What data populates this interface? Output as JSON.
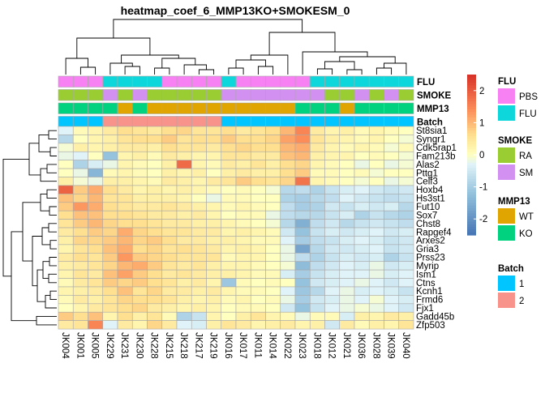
{
  "chart_data": {
    "type": "heatmap",
    "title": "heatmap_coef_6_MMP13KO+SMOKESM_0",
    "columns": [
      "JK004",
      "JK001",
      "JK005",
      "JK229",
      "JK231",
      "JK230",
      "JK228",
      "JK215",
      "JK218",
      "JK217",
      "JK219",
      "JK016",
      "JK017",
      "JK011",
      "JK014",
      "JK022",
      "JK023",
      "JK018",
      "JK012",
      "JK021",
      "JK036",
      "JK028",
      "JK039",
      "JK040"
    ],
    "rows": [
      "St8sia1",
      "Syngr1",
      "Cdk5rap1",
      "Fam213b",
      "Alas2",
      "Pttg1",
      "Celf3",
      "Hoxb4",
      "Hs3st1",
      "Fut10",
      "Sox7",
      "Chst8",
      "Rapgef4",
      "Arxes2",
      "Gria3",
      "Prss23",
      "Myrip",
      "Ism1",
      "Ctns",
      "Kcnh1",
      "Frmd6",
      "Fjx1",
      "Gadd45b",
      "Zfp503"
    ],
    "values": [
      [
        -0.3,
        0.1,
        0.2,
        0.4,
        0.6,
        0.5,
        0.4,
        0.6,
        0.7,
        0.5,
        0.5,
        0.6,
        0.4,
        0.5,
        0.6,
        1.0,
        1.5,
        0.4,
        0.2,
        0.3,
        0.1,
        0.2,
        0.1,
        0.0
      ],
      [
        -0.8,
        0.0,
        0.2,
        0.3,
        0.5,
        0.6,
        0.6,
        0.8,
        0.5,
        0.6,
        0.6,
        0.8,
        0.6,
        0.6,
        0.7,
        1.2,
        1.4,
        0.5,
        0.3,
        0.2,
        0.1,
        0.2,
        0.0,
        -0.1
      ],
      [
        -0.1,
        0.3,
        0.2,
        0.3,
        0.4,
        0.4,
        0.3,
        0.6,
        0.5,
        0.5,
        0.4,
        0.6,
        0.7,
        0.6,
        0.6,
        1.0,
        1.1,
        0.4,
        0.2,
        0.1,
        0.2,
        0.1,
        -0.1,
        0.1
      ],
      [
        -0.2,
        -0.3,
        0.0,
        -1.2,
        0.2,
        0.3,
        0.1,
        0.4,
        0.3,
        0.2,
        0.2,
        0.5,
        0.5,
        0.4,
        0.4,
        0.9,
        1.0,
        0.3,
        0.2,
        0.2,
        0.0,
        0.1,
        0.0,
        -0.1
      ],
      [
        0.0,
        -0.9,
        -0.4,
        -0.2,
        0.2,
        0.1,
        0.0,
        0.3,
        1.8,
        0.2,
        0.1,
        0.4,
        0.3,
        0.5,
        0.3,
        0.6,
        0.7,
        0.2,
        0.1,
        0.0,
        -0.2,
        0.0,
        -0.2,
        -0.1
      ],
      [
        0.0,
        -0.2,
        -1.4,
        0.1,
        0.2,
        0.1,
        0.0,
        0.3,
        0.2,
        0.3,
        0.0,
        0.3,
        0.4,
        0.3,
        0.3,
        0.6,
        0.8,
        0.1,
        0.1,
        0.0,
        0.1,
        -0.1,
        0.0,
        0.0
      ],
      [
        0.3,
        -0.1,
        -0.2,
        0.3,
        0.3,
        0.2,
        0.1,
        0.4,
        0.3,
        0.2,
        0.4,
        0.5,
        0.8,
        0.6,
        0.5,
        0.7,
        1.7,
        0.2,
        0.1,
        0.0,
        -0.1,
        0.0,
        -0.2,
        -0.1
      ],
      [
        1.9,
        0.8,
        1.1,
        0.6,
        0.4,
        0.2,
        0.3,
        0.2,
        0.3,
        0.2,
        0.1,
        0.0,
        0.1,
        0.0,
        -0.1,
        -0.8,
        -0.7,
        -0.9,
        -0.6,
        -0.4,
        -0.3,
        -0.5,
        -0.6,
        -0.5
      ],
      [
        0.9,
        0.7,
        1.0,
        0.5,
        0.5,
        0.3,
        0.3,
        0.3,
        0.2,
        0.0,
        -0.2,
        0.1,
        0.1,
        0.0,
        0.0,
        -0.9,
        -1.0,
        -0.8,
        -0.7,
        -0.3,
        -0.5,
        -0.6,
        -0.7,
        -0.6
      ],
      [
        0.8,
        1.3,
        1.1,
        0.6,
        0.5,
        0.4,
        0.4,
        0.5,
        0.4,
        0.3,
        0.2,
        0.1,
        0.2,
        0.1,
        0.0,
        -0.7,
        -1.0,
        -0.9,
        -0.5,
        -0.6,
        -0.4,
        -0.5,
        -0.4,
        -0.8
      ],
      [
        0.6,
        0.9,
        0.9,
        0.6,
        0.6,
        0.5,
        0.4,
        0.4,
        0.3,
        0.4,
        0.2,
        0.0,
        0.1,
        0.1,
        -0.2,
        -0.7,
        -0.8,
        -0.8,
        -0.6,
        -0.4,
        -0.9,
        -0.6,
        -0.8,
        -0.9
      ],
      [
        0.5,
        0.8,
        1.0,
        0.7,
        0.6,
        0.6,
        0.5,
        0.4,
        0.4,
        0.3,
        0.3,
        0.2,
        0.1,
        0.0,
        -0.1,
        -0.8,
        -1.5,
        -0.7,
        -0.5,
        -0.8,
        -0.6,
        -0.5,
        -0.6,
        -0.7
      ],
      [
        0.4,
        0.6,
        0.8,
        0.7,
        1.1,
        0.7,
        0.6,
        0.5,
        0.5,
        0.4,
        0.4,
        0.2,
        0.3,
        0.2,
        0.1,
        -0.5,
        -1.2,
        -0.6,
        -0.4,
        -0.5,
        -0.4,
        -0.3,
        -0.5,
        -0.4
      ],
      [
        0.3,
        0.7,
        0.7,
        0.8,
        1.0,
        0.7,
        0.8,
        0.6,
        0.4,
        0.4,
        0.3,
        0.3,
        0.2,
        0.1,
        0.1,
        -0.3,
        -1.0,
        -0.7,
        -0.6,
        -0.4,
        -0.3,
        -0.4,
        -0.6,
        -0.5
      ],
      [
        0.2,
        0.5,
        0.6,
        0.9,
        1.1,
        0.6,
        0.7,
        0.5,
        0.6,
        0.5,
        0.4,
        0.2,
        0.3,
        0.2,
        0.0,
        -0.2,
        -1.7,
        -0.8,
        -0.5,
        -0.5,
        -0.4,
        -0.3,
        -0.6,
        -0.5
      ],
      [
        0.4,
        0.6,
        0.5,
        0.8,
        1.3,
        0.8,
        0.7,
        0.6,
        0.5,
        0.5,
        0.5,
        0.1,
        0.2,
        0.2,
        0.0,
        -0.2,
        -0.7,
        -0.9,
        -0.6,
        -0.4,
        -0.5,
        -0.4,
        -0.9,
        -0.6
      ],
      [
        0.3,
        0.4,
        0.5,
        0.7,
        1.0,
        1.1,
        0.8,
        0.5,
        0.4,
        0.5,
        0.3,
        0.2,
        0.2,
        0.1,
        0.0,
        -0.1,
        -1.3,
        -0.7,
        -0.5,
        -0.3,
        -0.4,
        -0.2,
        -0.5,
        -0.4
      ],
      [
        0.2,
        0.5,
        0.4,
        0.9,
        1.2,
        0.8,
        0.6,
        0.4,
        0.5,
        0.4,
        0.3,
        0.3,
        0.2,
        0.1,
        0.1,
        -0.4,
        -1.0,
        -0.6,
        -0.4,
        -0.3,
        -0.3,
        -0.2,
        -0.4,
        -0.3
      ],
      [
        0.1,
        0.4,
        0.5,
        0.8,
        0.7,
        0.8,
        0.6,
        0.5,
        0.3,
        0.4,
        0.2,
        -1.1,
        0.1,
        0.0,
        0.1,
        0.0,
        -1.2,
        -0.5,
        -0.4,
        -0.3,
        -0.2,
        -0.3,
        -0.5,
        -0.3
      ],
      [
        0.2,
        0.3,
        0.4,
        0.6,
        0.9,
        0.5,
        0.7,
        0.4,
        0.4,
        0.3,
        0.4,
        0.2,
        0.1,
        0.1,
        0.0,
        -0.3,
        -1.1,
        -0.8,
        -0.3,
        -0.2,
        -0.4,
        -0.3,
        -0.4,
        -0.6
      ],
      [
        0.1,
        0.4,
        0.3,
        0.5,
        0.7,
        0.6,
        0.6,
        0.5,
        0.3,
        0.2,
        0.3,
        0.1,
        0.2,
        0.0,
        0.1,
        -0.2,
        -1.0,
        -0.5,
        -0.4,
        -0.2,
        -0.3,
        -0.1,
        -0.3,
        -0.4
      ],
      [
        0.0,
        0.2,
        0.4,
        0.5,
        0.6,
        0.7,
        0.4,
        0.3,
        0.2,
        0.3,
        0.2,
        0.0,
        0.1,
        0.1,
        0.0,
        -0.5,
        -1.2,
        -0.6,
        -0.3,
        -0.2,
        -0.1,
        -0.2,
        -0.3,
        -0.5
      ],
      [
        0.8,
        0.6,
        0.9,
        0.2,
        0.6,
        0.3,
        0.5,
        0.1,
        -0.9,
        -0.6,
        0.2,
        0.0,
        0.3,
        0.5,
        0.2,
        0.1,
        -0.2,
        0.1,
        0.1,
        -0.4,
        0.3,
        0.2,
        0.4,
        0.3
      ],
      [
        0.4,
        0.5,
        1.5,
        -0.3,
        0.4,
        0.2,
        0.7,
        0.4,
        -0.3,
        -0.4,
        0.3,
        0.5,
        0.4,
        0.2,
        0.3,
        0.4,
        0.2,
        0.3,
        -0.5,
        0.4,
        0.1,
        0.3,
        0.2,
        0.5
      ]
    ],
    "annotations": {
      "FLU": [
        "PBS",
        "PBS",
        "PBS",
        "FLU",
        "FLU",
        "FLU",
        "FLU",
        "PBS",
        "PBS",
        "PBS",
        "PBS",
        "FLU",
        "PBS",
        "PBS",
        "PBS",
        "PBS",
        "PBS",
        "FLU",
        "FLU",
        "FLU",
        "FLU",
        "FLU",
        "FLU",
        "FLU"
      ],
      "SMOKE": [
        "RA",
        "RA",
        "RA",
        "SM",
        "RA",
        "SM",
        "RA",
        "RA",
        "RA",
        "RA",
        "RA",
        "SM",
        "SM",
        "SM",
        "SM",
        "SM",
        "SM",
        "SM",
        "RA",
        "RA",
        "SM",
        "RA",
        "SM",
        "RA"
      ],
      "MMP13": [
        "KO",
        "KO",
        "KO",
        "KO",
        "WT",
        "KO",
        "WT",
        "WT",
        "WT",
        "WT",
        "WT",
        "WT",
        "WT",
        "WT",
        "WT",
        "WT",
        "KO",
        "KO",
        "KO",
        "WT",
        "KO",
        "KO",
        "KO",
        "KO"
      ],
      "Batch": [
        "1",
        "1",
        "1",
        "2",
        "2",
        "2",
        "2",
        "2",
        "2",
        "2",
        "2",
        "1",
        "1",
        "1",
        "1",
        "1",
        "1",
        "1",
        "1",
        "1",
        "1",
        "1",
        "1",
        "1"
      ]
    },
    "annotation_order": [
      "FLU",
      "SMOKE",
      "MMP13",
      "Batch"
    ],
    "colorbar": {
      "ticks": [
        2,
        1,
        0,
        -1,
        -2
      ],
      "tick_labels": [
        "2",
        "1",
        "0",
        "-1",
        "-2"
      ],
      "range": [
        -2.5,
        2.5
      ],
      "low_color": "#4575B4",
      "mid_color": "#FFFFBF",
      "high_color": "#D73027"
    },
    "legends": [
      {
        "title": "FLU",
        "items": [
          {
            "label": "PBS",
            "color": "#F781F3"
          },
          {
            "label": "FLU",
            "color": "#0ED7DC"
          }
        ]
      },
      {
        "title": "SMOKE",
        "items": [
          {
            "label": "RA",
            "color": "#9ACD32"
          },
          {
            "label": "SM",
            "color": "#D291F0"
          }
        ]
      },
      {
        "title": "MMP13",
        "items": [
          {
            "label": "WT",
            "color": "#E0A500"
          },
          {
            "label": "KO",
            "color": "#00D27F"
          }
        ]
      },
      {
        "title": "Batch",
        "items": [
          {
            "label": "1",
            "color": "#00C5FF"
          },
          {
            "label": "2",
            "color": "#F8938C"
          }
        ]
      }
    ]
  }
}
